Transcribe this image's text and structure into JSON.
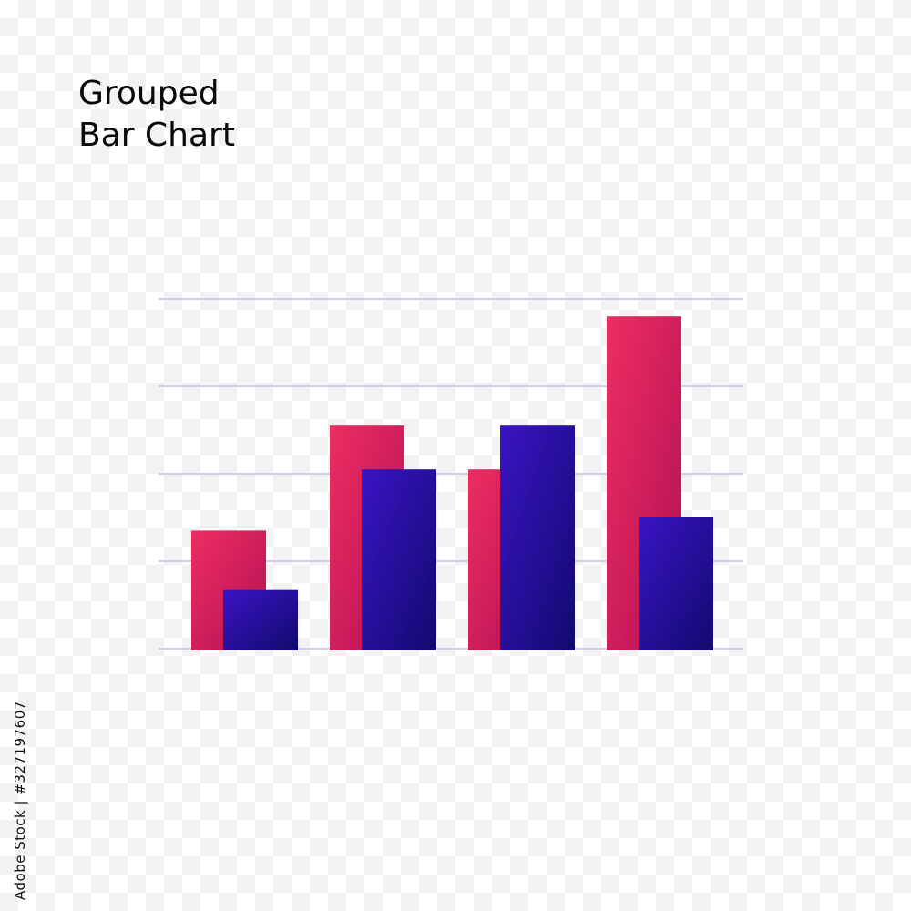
{
  "page": {
    "background": "transparency-checkerboard",
    "side_text": "Adobe Stock | #327197607"
  },
  "chart_data": {
    "type": "bar",
    "title": "Grouped\nBar Chart",
    "categories": [
      "",
      "",
      "",
      ""
    ],
    "series": [
      {
        "color_top": "#ee2d62",
        "color_bottom": "#b01155",
        "values": [
          1.35,
          2.55,
          2.05,
          3.8
        ]
      },
      {
        "color_top": "#3a14c4",
        "color_bottom": "#120a6e",
        "values": [
          0.67,
          2.05,
          2.55,
          1.5
        ]
      }
    ],
    "ylim": [
      0,
      4
    ],
    "gridlines": [
      0,
      1,
      2,
      3,
      4
    ],
    "grid_color": "#d2cce6",
    "xlabel": "",
    "ylabel": "",
    "legend": "none",
    "grid": true
  }
}
